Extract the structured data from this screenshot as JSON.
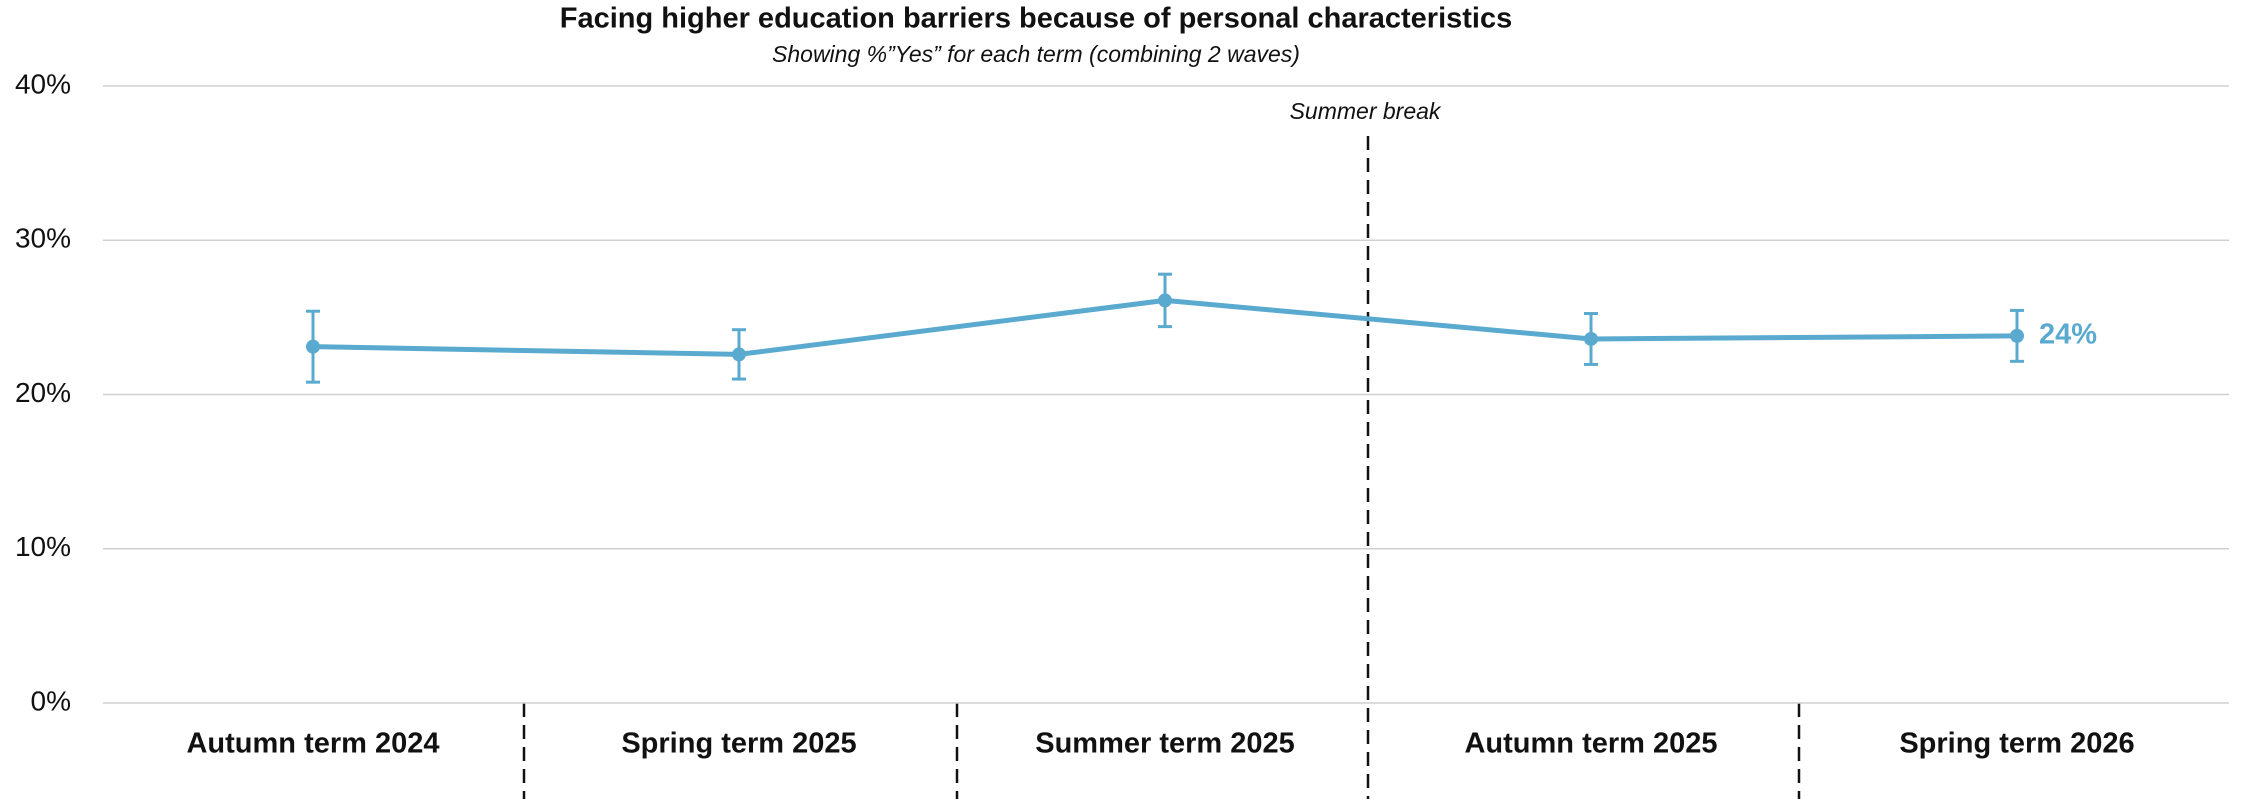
{
  "chart_data": {
    "type": "line",
    "title": "Facing higher education barriers because of personal characteristics",
    "subtitle": "Showing %”Yes” for each term (combining 2 waves)",
    "annotation": "Summer break",
    "categories": [
      "Autumn term 2024",
      "Spring term 2025",
      "Summer term 2025",
      "Autumn term 2025",
      "Spring term 2026"
    ],
    "series": [
      {
        "name": "Yes",
        "color": "#5aaad0",
        "values": [
          23.1,
          22.6,
          26.1,
          23.6,
          23.8
        ],
        "errors": [
          2.3,
          1.6,
          1.7,
          1.65,
          1.65
        ],
        "value_labels": [
          null,
          null,
          null,
          null,
          "24%"
        ]
      }
    ],
    "ylim": [
      0,
      40
    ],
    "yticks": [
      {
        "value": 0,
        "label": "0%"
      },
      {
        "value": 10,
        "label": "10%"
      },
      {
        "value": 20,
        "label": "20%"
      },
      {
        "value": 30,
        "label": "30%"
      },
      {
        "value": 40,
        "label": "40%"
      }
    ],
    "grid": true
  }
}
